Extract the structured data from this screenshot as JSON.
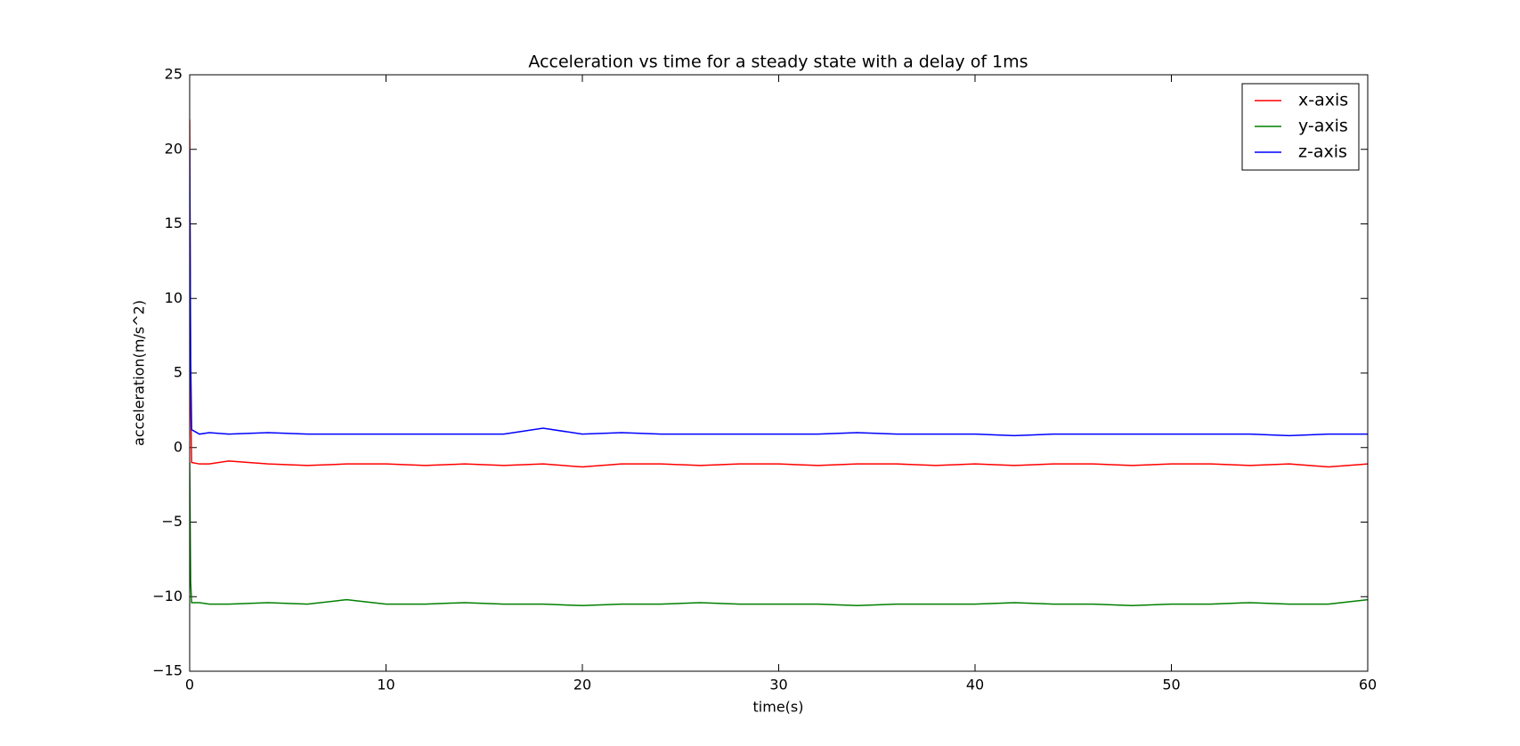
{
  "chart_data": {
    "type": "line",
    "title": "Acceleration vs time for a steady state with a delay of 1ms",
    "x_label": "time(s)",
    "y_label": "acceleration(m/s^2)",
    "x": [
      0,
      0.05,
      0.1,
      0.5,
      1,
      2,
      4,
      6,
      8,
      10,
      12,
      14,
      16,
      18,
      20,
      22,
      24,
      26,
      28,
      30,
      32,
      34,
      36,
      38,
      40,
      42,
      44,
      46,
      48,
      50,
      52,
      54,
      56,
      58,
      60
    ],
    "series": [
      {
        "name": "x-axis",
        "color": "#ff0000",
        "values": [
          22,
          3,
          -1.0,
          -1.1,
          -1.1,
          -0.9,
          -1.1,
          -1.2,
          -1.1,
          -1.1,
          -1.2,
          -1.1,
          -1.2,
          -1.1,
          -1.3,
          -1.1,
          -1.1,
          -1.2,
          -1.1,
          -1.1,
          -1.2,
          -1.1,
          -1.1,
          -1.2,
          -1.1,
          -1.2,
          -1.1,
          -1.1,
          -1.2,
          -1.1,
          -1.1,
          -1.2,
          -1.1,
          -1.3,
          -1.1
        ]
      },
      {
        "name": "y-axis",
        "color": "#008000",
        "values": [
          -1,
          -9,
          -10.4,
          -10.4,
          -10.5,
          -10.5,
          -10.4,
          -10.5,
          -10.2,
          -10.5,
          -10.5,
          -10.4,
          -10.5,
          -10.5,
          -10.6,
          -10.5,
          -10.5,
          -10.4,
          -10.5,
          -10.5,
          -10.5,
          -10.6,
          -10.5,
          -10.5,
          -10.5,
          -10.4,
          -10.5,
          -10.5,
          -10.6,
          -10.5,
          -10.5,
          -10.4,
          -10.5,
          -10.5,
          -10.2
        ]
      },
      {
        "name": "z-axis",
        "color": "#0000ff",
        "values": [
          20,
          6,
          1.2,
          0.9,
          1.0,
          0.9,
          1.0,
          0.9,
          0.9,
          0.9,
          0.9,
          0.9,
          0.9,
          1.3,
          0.9,
          1.0,
          0.9,
          0.9,
          0.9,
          0.9,
          0.9,
          1.0,
          0.9,
          0.9,
          0.9,
          0.8,
          0.9,
          0.9,
          0.9,
          0.9,
          0.9,
          0.9,
          0.8,
          0.9,
          0.9
        ]
      }
    ],
    "xlim": [
      0,
      60
    ],
    "xticks": [
      0,
      10,
      20,
      30,
      40,
      50,
      60
    ],
    "ylim": [
      -15,
      25
    ],
    "yticks": [
      {
        "value": -15,
        "label": "−15"
      },
      {
        "value": -10,
        "label": "−10"
      },
      {
        "value": -5,
        "label": "−5"
      },
      0,
      5,
      10,
      15,
      20,
      25
    ],
    "legend": "upper right",
    "grid": false
  }
}
